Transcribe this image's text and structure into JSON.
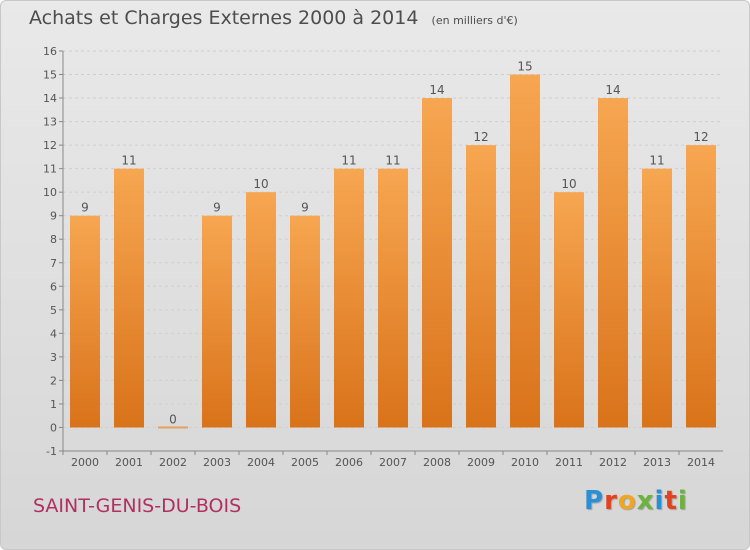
{
  "header": {
    "title": "Achats et Charges Externes 2000 à 2014",
    "subtitle": "(en milliers d'€)"
  },
  "footer": {
    "commune": "SAINT-GENIS-DU-BOIS",
    "brand_letters": [
      "P",
      "r",
      "o",
      "x",
      "i",
      "t",
      "i"
    ],
    "brand_colors": [
      "#2a8fd4",
      "#e3421f",
      "#f2a51f",
      "#6cb33e",
      "#2a8fd4",
      "#e3421f",
      "#6cb33e"
    ]
  },
  "colors": {
    "bar_top": "#f7a651",
    "bar_bottom": "#d9731a",
    "zero_bar": "#e8a060",
    "grid": "#cfcfcf",
    "axis_text": "#555555"
  },
  "chart_data": {
    "type": "bar",
    "categories": [
      "2000",
      "2001",
      "2002",
      "2003",
      "2004",
      "2005",
      "2006",
      "2007",
      "2008",
      "2009",
      "2010",
      "2011",
      "2012",
      "2013",
      "2014"
    ],
    "values": [
      9,
      11,
      0,
      9,
      10,
      9,
      11,
      11,
      14,
      12,
      15,
      10,
      14,
      11,
      12
    ],
    "data_labels": [
      "9",
      "11",
      "0",
      "9",
      "10",
      "9",
      "11",
      "11",
      "14",
      "12",
      "15",
      "10",
      "14",
      "11",
      "12"
    ],
    "yticks": [
      "-1",
      "0",
      "1",
      "2",
      "3",
      "4",
      "5",
      "6",
      "7",
      "8",
      "9",
      "10",
      "11",
      "12",
      "13",
      "14",
      "15",
      "16"
    ],
    "ylim": [
      -1,
      16
    ],
    "grid": true
  }
}
